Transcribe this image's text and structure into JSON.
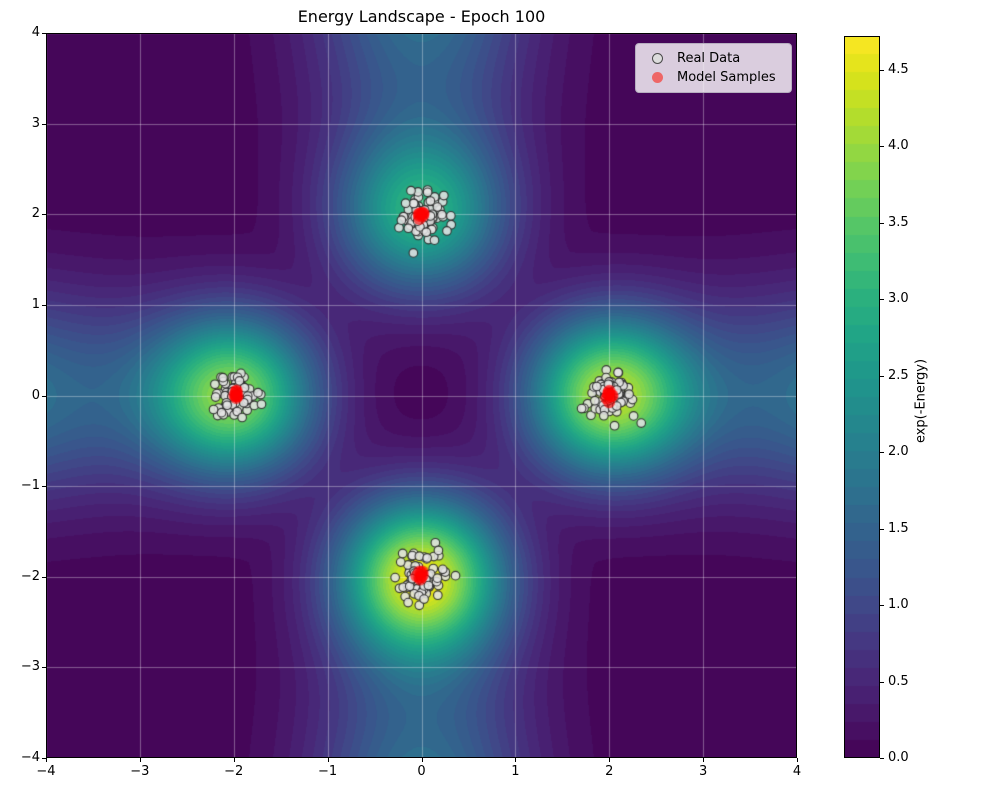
{
  "figure": {
    "title": "Energy Landscape - Epoch 100"
  },
  "axes": {
    "x_ticks": [
      "−4",
      "−3",
      "−2",
      "−1",
      "0",
      "1",
      "2",
      "3",
      "4"
    ],
    "y_ticks": [
      "4",
      "3",
      "2",
      "1",
      "0",
      "−1",
      "−2",
      "−3",
      "−4"
    ],
    "x_range": [
      -4,
      4
    ],
    "y_range": [
      -4,
      4
    ],
    "grid": true,
    "grid_color": "rgba(255,255,255,0.35)"
  },
  "legend": {
    "entries": [
      {
        "label": "Real Data",
        "marker": "open-circle",
        "fill": "#dcdcdc",
        "edge": "#4a4a4a"
      },
      {
        "label": "Model Samples",
        "marker": "filled-circle",
        "fill": "#ee6666",
        "edge": "none"
      }
    ]
  },
  "colorbar": {
    "label": "exp(-Energy)",
    "ticks": [
      "0.0",
      "0.5",
      "1.0",
      "1.5",
      "2.0",
      "2.5",
      "3.0",
      "3.5",
      "4.0",
      "4.5"
    ],
    "vmin": 0.0,
    "vmax": 4.72
  },
  "chart_data": {
    "type": "heatmap",
    "subtype": "filled-contour-with-scatter",
    "title": "Energy Landscape - Epoch 100",
    "xlim": [
      -4,
      4
    ],
    "ylim": [
      -4,
      4
    ],
    "vmin": 0.0,
    "vmax": 4.72,
    "levels": 40,
    "colormap": {
      "name": "viridis",
      "stops": [
        "#440154",
        "#481567",
        "#482677",
        "#453781",
        "#404788",
        "#39568C",
        "#33638D",
        "#2D708E",
        "#287D8E",
        "#238A8D",
        "#1F968B",
        "#20A387",
        "#29AF7F",
        "#3CBB75",
        "#55C667",
        "#73D055",
        "#95D840",
        "#B8DE29",
        "#DCE319",
        "#FDE725"
      ]
    },
    "energy_model": {
      "description": "exp(-Energy) surface: four Gaussian modes plus axis-aligned arms",
      "modes": [
        {
          "x": 0,
          "y": 2,
          "amplitude": 2.5
        },
        {
          "x": 2,
          "y": 0,
          "amplitude": 3.7
        },
        {
          "x": 0,
          "y": -2,
          "amplitude": 4.1
        },
        {
          "x": -2,
          "y": 0,
          "amplitude": 3.4
        }
      ],
      "mode_sigma2": 0.36,
      "cross_arms": {
        "amplitude": 1.7,
        "width": 1.2,
        "radial_power": 1.5
      }
    },
    "scatter": {
      "real_data": {
        "label": "Real Data",
        "fill": "#e2e2e2",
        "edge": "#2a2a2a",
        "alpha": 0.88,
        "n_per_cluster": 75,
        "sigma": 0.13,
        "clusters": [
          [
            0,
            2
          ],
          [
            2,
            0
          ],
          [
            0,
            -2
          ],
          [
            -2,
            0
          ]
        ]
      },
      "model_samples": {
        "label": "Model Samples",
        "fill": "#ff0000",
        "alpha": 0.6,
        "n_per_cluster": 8,
        "sigma": 0.025,
        "clusters": [
          [
            0,
            2
          ],
          [
            2,
            0
          ],
          [
            0,
            -2
          ],
          [
            -2,
            0
          ]
        ]
      }
    },
    "seed": 42
  }
}
